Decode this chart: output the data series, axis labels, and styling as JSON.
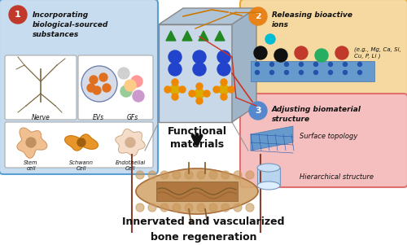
{
  "bg_color": "#ffffff",
  "title": "Innervated and vascularized\nbone regeneration",
  "title_fontsize": 9,
  "box1_color": "#c8dcf0",
  "box1_border": "#5a9fd4",
  "box1_label": "1",
  "box1_label_bg": "#c0392b",
  "box1_title": "Incorporating\nbiological-sourced\nsubstances",
  "box2_color": "#f5d9a0",
  "box2_border": "#e8a832",
  "box2_label": "2",
  "box2_label_bg": "#e8831a",
  "box2_title": "Releasing bioactive\nions",
  "box2_text": "(e.g., Mg, Ca, Si,\nCu, P, Li )",
  "box3_color": "#f5bfbf",
  "box3_border": "#e07070",
  "box3_label": "3",
  "box3_label_bg": "#5588cc",
  "box3_title": "Adjusting biomaterial\nstructure",
  "box3_item1": "Surface topology",
  "box3_item2": "Hierarchical structure",
  "center_label": "Functional\nmaterials",
  "nerve_color": "#8B7355",
  "sub_labels_nerve": "Nerve",
  "sub_labels_evs": "EVs",
  "sub_labels_gfs": "GFs",
  "sub_labels_stem": "Stem\ncell",
  "sub_labels_schwann": "Schwann\nCell",
  "sub_labels_endothelial": "Endothelial\nCell"
}
